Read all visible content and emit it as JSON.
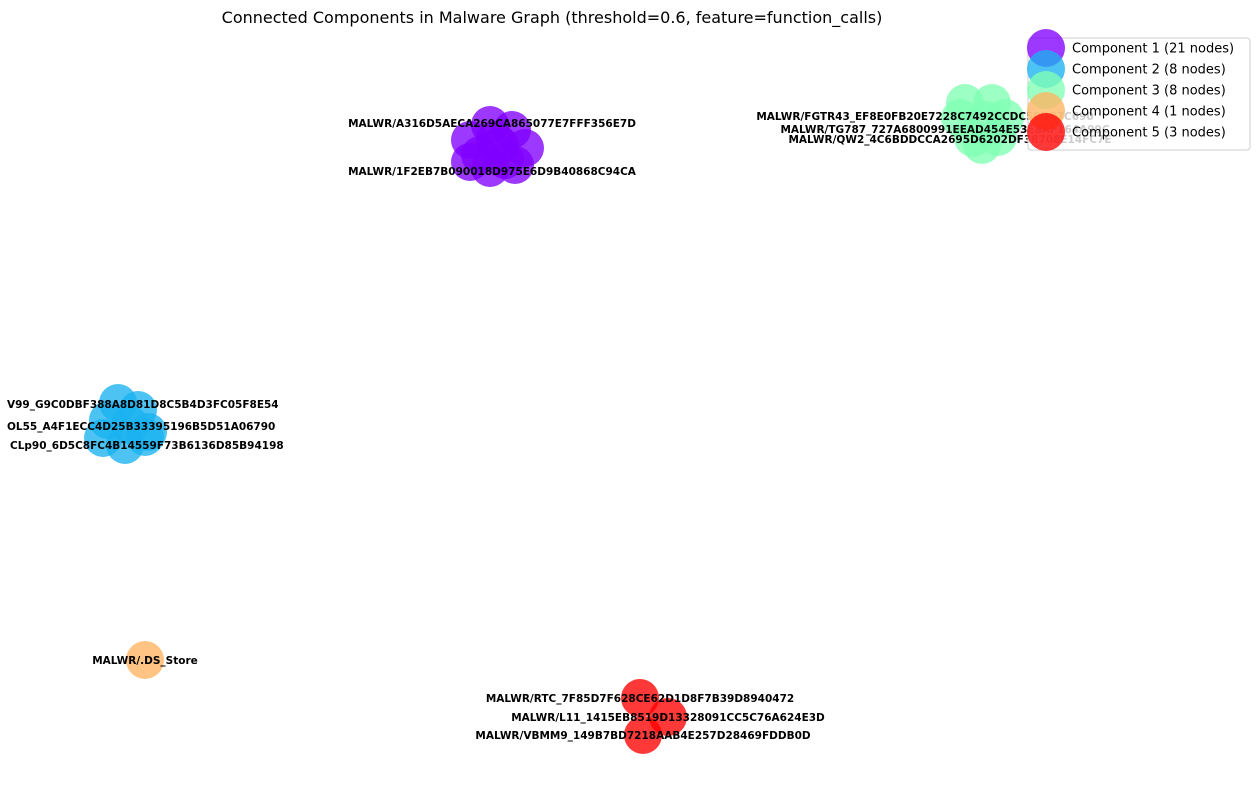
{
  "title": "Connected Components in Malware Graph (threshold=0.6, feature=function_calls)",
  "legend": {
    "placement": "top-right",
    "entries": [
      "Component 1 (21 nodes)",
      "Component 2 (8 nodes)",
      "Component 3 (8 nodes)",
      "Component 4 (1 nodes)",
      "Component 5 (3 nodes)"
    ]
  },
  "colors": {
    "component_1": "#8000ff",
    "component_2": "#1ab2f0",
    "component_3": "#80ffb4",
    "component_4": "#ffb360",
    "component_5": "#ff0000"
  },
  "components": [
    {
      "name": "Component 1",
      "labels": [
        "MALWR/A316D5AECA269CA865077E7FFF356E7D",
        "MALWR/1F2EB7B090018D975E6D9B40868C94CA"
      ]
    },
    {
      "name": "Component 2",
      "labels": [
        "V99_G9C0DBF388A8D81D8C5B4D3FC05F8E54",
        "CLp90_6D5C8FC4B14559F73B6136D85B94198",
        "OL55_A4F1ECC4D25B33395196B5D51A06790"
      ]
    },
    {
      "name": "Component 3",
      "labels": [
        "MALWR/FGTR43_EF8E0FB20E7228C7492CCDC59D87C690",
        "MALWR/TG787_727A6800991EEAD454E53E8AF164A99C",
        "MALWR/QW2_4C6BDDCCA2695D6202DF38708E14FC7E"
      ]
    },
    {
      "name": "Component 4",
      "labels": [
        "MALWR/.DS_Store"
      ]
    },
    {
      "name": "Component 5",
      "labels": [
        "MALWR/RTC_7F85D7F628CE62D1D8F7B39D8940472",
        "MALWR/L11_1415EB8519D13328091CC5C76A624E3D",
        "MALWR/VBMM9_149B7BD7218AAB4E257D28469FDDB0D"
      ]
    }
  ]
}
